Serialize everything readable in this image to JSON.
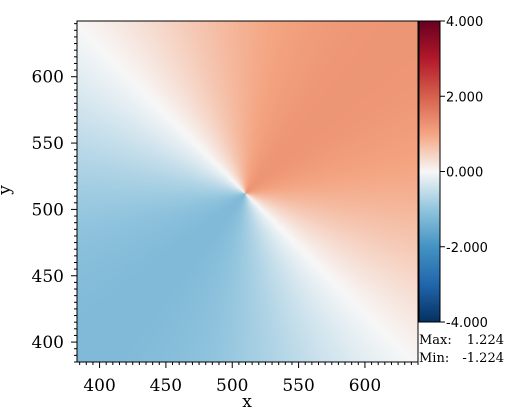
{
  "chart_data": {
    "type": "heatmap",
    "field": "atan2-like scalar field centered near (510, 512)",
    "x": {
      "label": "x",
      "range": [
        383,
        640
      ],
      "ticks": [
        400,
        450,
        500,
        550,
        600
      ]
    },
    "y": {
      "label": "y",
      "range": [
        385,
        642
      ],
      "ticks": [
        400,
        450,
        500,
        550,
        600
      ]
    },
    "center": [
      510,
      512
    ],
    "colorbar": {
      "colormap": "RdBu_r",
      "range": [
        -4.0,
        4.0
      ],
      "ticks": [
        "4.000",
        "2.000",
        "0.000",
        "-2.000",
        "-4.000"
      ],
      "tick_values": [
        4,
        2,
        0,
        -2,
        -4
      ]
    },
    "stats": {
      "max_label": "Max:",
      "max_value": "1.224",
      "min_label": "Min:",
      "min_value": "-1.224"
    }
  }
}
